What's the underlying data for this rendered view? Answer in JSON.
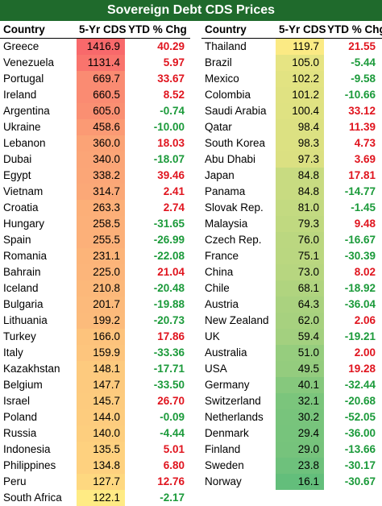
{
  "title": "Sovereign Debt CDS Prices",
  "headers": {
    "country": "Country",
    "cds": "5-Yr CDS",
    "chg": "YTD % Chg"
  },
  "colors": {
    "title_bg": "#1f6a2c",
    "positive": "#e0141e",
    "negative": "#1b9a3a",
    "high": "#f8696b",
    "mid": "#ffeb84",
    "low": "#63be7b"
  },
  "chart_data": {
    "type": "table",
    "columns": [
      "Country",
      "5-Yr CDS",
      "YTD % Chg"
    ],
    "left": [
      {
        "country": "Greece",
        "cds": "1416.9",
        "chg": "40.29"
      },
      {
        "country": "Venezuela",
        "cds": "1131.4",
        "chg": "5.97"
      },
      {
        "country": "Portugal",
        "cds": "669.7",
        "chg": "33.67"
      },
      {
        "country": "Ireland",
        "cds": "660.5",
        "chg": "8.52"
      },
      {
        "country": "Argentina",
        "cds": "605.0",
        "chg": "-0.74"
      },
      {
        "country": "Ukraine",
        "cds": "458.6",
        "chg": "-10.00"
      },
      {
        "country": "Lebanon",
        "cds": "360.0",
        "chg": "18.03"
      },
      {
        "country": "Dubai",
        "cds": "340.0",
        "chg": "-18.07"
      },
      {
        "country": "Egypt",
        "cds": "338.2",
        "chg": "39.46"
      },
      {
        "country": "Vietnam",
        "cds": "314.7",
        "chg": "2.41"
      },
      {
        "country": "Croatia",
        "cds": "263.3",
        "chg": "2.74"
      },
      {
        "country": "Hungary",
        "cds": "258.5",
        "chg": "-31.65"
      },
      {
        "country": "Spain",
        "cds": "255.5",
        "chg": "-26.99"
      },
      {
        "country": "Romania",
        "cds": "231.1",
        "chg": "-22.08"
      },
      {
        "country": "Bahrain",
        "cds": "225.0",
        "chg": "21.04"
      },
      {
        "country": "Iceland",
        "cds": "210.8",
        "chg": "-20.48"
      },
      {
        "country": "Bulgaria",
        "cds": "201.7",
        "chg": "-19.88"
      },
      {
        "country": "Lithuania",
        "cds": "199.2",
        "chg": "-20.73"
      },
      {
        "country": "Turkey",
        "cds": "166.0",
        "chg": "17.86"
      },
      {
        "country": "Italy",
        "cds": "159.9",
        "chg": "-33.36"
      },
      {
        "country": "Kazakhstan",
        "cds": "148.1",
        "chg": "-17.71"
      },
      {
        "country": "Belgium",
        "cds": "147.7",
        "chg": "-33.50"
      },
      {
        "country": "Israel",
        "cds": "145.7",
        "chg": "26.70"
      },
      {
        "country": "Poland",
        "cds": "144.0",
        "chg": "-0.09"
      },
      {
        "country": "Russia",
        "cds": "140.0",
        "chg": "-4.44"
      },
      {
        "country": "Indonesia",
        "cds": "135.5",
        "chg": "5.01"
      },
      {
        "country": "Philippines",
        "cds": "134.8",
        "chg": "6.80"
      },
      {
        "country": "Peru",
        "cds": "127.7",
        "chg": "12.76"
      },
      {
        "country": "South Africa",
        "cds": "122.1",
        "chg": "-2.17"
      }
    ],
    "right": [
      {
        "country": "Thailand",
        "cds": "119.7",
        "chg": "21.55"
      },
      {
        "country": "Brazil",
        "cds": "105.0",
        "chg": "-5.44"
      },
      {
        "country": "Mexico",
        "cds": "102.2",
        "chg": "-9.58"
      },
      {
        "country": "Colombia",
        "cds": "101.2",
        "chg": "-10.66"
      },
      {
        "country": "Saudi Arabia",
        "cds": "100.4",
        "chg": "33.12"
      },
      {
        "country": "Qatar",
        "cds": "98.4",
        "chg": "11.39"
      },
      {
        "country": "South Korea",
        "cds": "98.3",
        "chg": "4.73"
      },
      {
        "country": "Abu Dhabi",
        "cds": "97.3",
        "chg": "3.69"
      },
      {
        "country": "Japan",
        "cds": "84.8",
        "chg": "17.81"
      },
      {
        "country": "Panama",
        "cds": "84.8",
        "chg": "-14.77"
      },
      {
        "country": "Slovak Rep.",
        "cds": "81.0",
        "chg": "-1.45"
      },
      {
        "country": "Malaysia",
        "cds": "79.3",
        "chg": "9.48"
      },
      {
        "country": "Czech Rep.",
        "cds": "76.0",
        "chg": "-16.67"
      },
      {
        "country": "France",
        "cds": "75.1",
        "chg": "-30.39"
      },
      {
        "country": "China",
        "cds": "73.0",
        "chg": "8.02"
      },
      {
        "country": "Chile",
        "cds": "68.1",
        "chg": "-18.92"
      },
      {
        "country": "Austria",
        "cds": "64.3",
        "chg": "-36.04"
      },
      {
        "country": "New Zealand",
        "cds": "62.0",
        "chg": "2.06"
      },
      {
        "country": "UK",
        "cds": "59.4",
        "chg": "-19.21"
      },
      {
        "country": "Australia",
        "cds": "51.0",
        "chg": "2.00"
      },
      {
        "country": "USA",
        "cds": "49.5",
        "chg": "19.28"
      },
      {
        "country": "Germany",
        "cds": "40.1",
        "chg": "-32.44"
      },
      {
        "country": "Switzerland",
        "cds": "32.1",
        "chg": "-20.68"
      },
      {
        "country": "Netherlands",
        "cds": "30.2",
        "chg": "-52.05"
      },
      {
        "country": "Denmark",
        "cds": "29.4",
        "chg": "-36.00"
      },
      {
        "country": "Finland",
        "cds": "29.0",
        "chg": "-13.66"
      },
      {
        "country": "Sweden",
        "cds": "23.8",
        "chg": "-30.17"
      },
      {
        "country": "Norway",
        "cds": "16.1",
        "chg": "-30.67"
      }
    ]
  }
}
